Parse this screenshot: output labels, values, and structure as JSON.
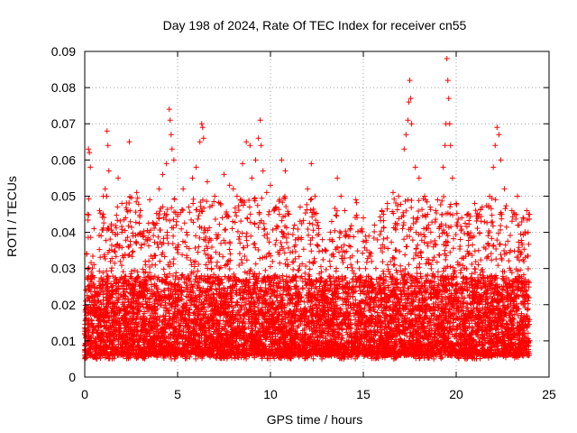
{
  "chart_data": {
    "type": "scatter",
    "title": "Day 198 of 2024, Rate Of TEC Index for receiver cn55",
    "xlabel": "GPS time / hours",
    "ylabel": "ROTI / TECUs",
    "xlim": [
      0,
      25
    ],
    "ylim": [
      0,
      0.09
    ],
    "x_ticks": [
      "0",
      "5",
      "10",
      "15",
      "20",
      "25"
    ],
    "y_ticks": [
      "0",
      "0.01",
      "0.02",
      "0.03",
      "0.04",
      "0.05",
      "0.06",
      "0.07",
      "0.08",
      "0.09"
    ],
    "grid": true,
    "marker": "plus",
    "color": "#ff0000",
    "series": [
      {
        "points": [
          [
            0.0,
            0.012
          ],
          [
            0.05,
            0.021
          ],
          [
            0.1,
            0.034
          ],
          [
            0.15,
            0.045
          ],
          [
            0.2,
            0.063
          ],
          [
            0.25,
            0.062
          ],
          [
            0.3,
            0.058
          ],
          [
            0.35,
            0.029
          ],
          [
            0.5,
            0.041
          ],
          [
            0.6,
            0.018
          ],
          [
            0.8,
            0.046
          ],
          [
            1.0,
            0.05
          ],
          [
            1.1,
            0.052
          ],
          [
            1.2,
            0.068
          ],
          [
            1.25,
            0.064
          ],
          [
            1.3,
            0.057
          ],
          [
            1.5,
            0.04
          ],
          [
            1.8,
            0.055
          ],
          [
            2.0,
            0.048
          ],
          [
            2.2,
            0.044
          ],
          [
            2.4,
            0.065
          ],
          [
            2.6,
            0.039
          ],
          [
            2.8,
            0.051
          ],
          [
            3.0,
            0.046
          ],
          [
            3.3,
            0.038
          ],
          [
            3.5,
            0.049
          ],
          [
            3.8,
            0.042
          ],
          [
            4.0,
            0.052
          ],
          [
            4.2,
            0.056
          ],
          [
            4.4,
            0.059
          ],
          [
            4.55,
            0.074
          ],
          [
            4.6,
            0.071
          ],
          [
            4.65,
            0.067
          ],
          [
            4.7,
            0.063
          ],
          [
            4.8,
            0.06
          ],
          [
            5.0,
            0.045
          ],
          [
            5.3,
            0.052
          ],
          [
            5.6,
            0.047
          ],
          [
            5.8,
            0.055
          ],
          [
            6.0,
            0.058
          ],
          [
            6.2,
            0.065
          ],
          [
            6.3,
            0.07
          ],
          [
            6.35,
            0.069
          ],
          [
            6.4,
            0.066
          ],
          [
            6.6,
            0.054
          ],
          [
            7.0,
            0.05
          ],
          [
            7.3,
            0.048
          ],
          [
            7.5,
            0.056
          ],
          [
            7.8,
            0.053
          ],
          [
            8.0,
            0.052
          ],
          [
            8.2,
            0.05
          ],
          [
            8.5,
            0.059
          ],
          [
            8.7,
            0.065
          ],
          [
            8.9,
            0.064
          ],
          [
            9.0,
            0.055
          ],
          [
            9.2,
            0.06
          ],
          [
            9.35,
            0.066
          ],
          [
            9.45,
            0.071
          ],
          [
            9.5,
            0.064
          ],
          [
            9.6,
            0.057
          ],
          [
            9.8,
            0.051
          ],
          [
            10.0,
            0.053
          ],
          [
            10.3,
            0.047
          ],
          [
            10.6,
            0.06
          ],
          [
            10.8,
            0.057
          ],
          [
            11.0,
            0.045
          ],
          [
            11.3,
            0.042
          ],
          [
            11.6,
            0.047
          ],
          [
            12.0,
            0.052
          ],
          [
            12.2,
            0.059
          ],
          [
            12.4,
            0.05
          ],
          [
            12.6,
            0.041
          ],
          [
            12.8,
            0.038
          ],
          [
            13.0,
            0.035
          ],
          [
            13.3,
            0.043
          ],
          [
            13.6,
            0.055
          ],
          [
            13.8,
            0.05
          ],
          [
            14.0,
            0.046
          ],
          [
            14.3,
            0.041
          ],
          [
            14.6,
            0.049
          ],
          [
            15.0,
            0.044
          ],
          [
            15.3,
            0.039
          ],
          [
            15.6,
            0.042
          ],
          [
            16.0,
            0.046
          ],
          [
            16.3,
            0.048
          ],
          [
            16.6,
            0.051
          ],
          [
            16.9,
            0.05
          ],
          [
            17.2,
            0.063
          ],
          [
            17.3,
            0.067
          ],
          [
            17.4,
            0.071
          ],
          [
            17.45,
            0.076
          ],
          [
            17.5,
            0.082
          ],
          [
            17.55,
            0.077
          ],
          [
            17.6,
            0.07
          ],
          [
            17.8,
            0.058
          ],
          [
            18.0,
            0.055
          ],
          [
            18.3,
            0.05
          ],
          [
            18.6,
            0.047
          ],
          [
            18.9,
            0.046
          ],
          [
            19.0,
            0.049
          ],
          [
            19.3,
            0.058
          ],
          [
            19.4,
            0.064
          ],
          [
            19.45,
            0.07
          ],
          [
            19.5,
            0.088
          ],
          [
            19.55,
            0.082
          ],
          [
            19.6,
            0.077
          ],
          [
            19.65,
            0.07
          ],
          [
            19.7,
            0.064
          ],
          [
            19.8,
            0.055
          ],
          [
            20.0,
            0.048
          ],
          [
            20.3,
            0.044
          ],
          [
            20.6,
            0.045
          ],
          [
            21.0,
            0.048
          ],
          [
            21.4,
            0.047
          ],
          [
            21.8,
            0.05
          ],
          [
            22.0,
            0.058
          ],
          [
            22.1,
            0.064
          ],
          [
            22.2,
            0.069
          ],
          [
            22.3,
            0.067
          ],
          [
            22.4,
            0.06
          ],
          [
            22.6,
            0.052
          ],
          [
            23.0,
            0.046
          ],
          [
            23.3,
            0.05
          ],
          [
            23.6,
            0.044
          ],
          [
            23.8,
            0.046
          ],
          [
            23.95,
            0.045
          ]
        ]
      }
    ]
  }
}
